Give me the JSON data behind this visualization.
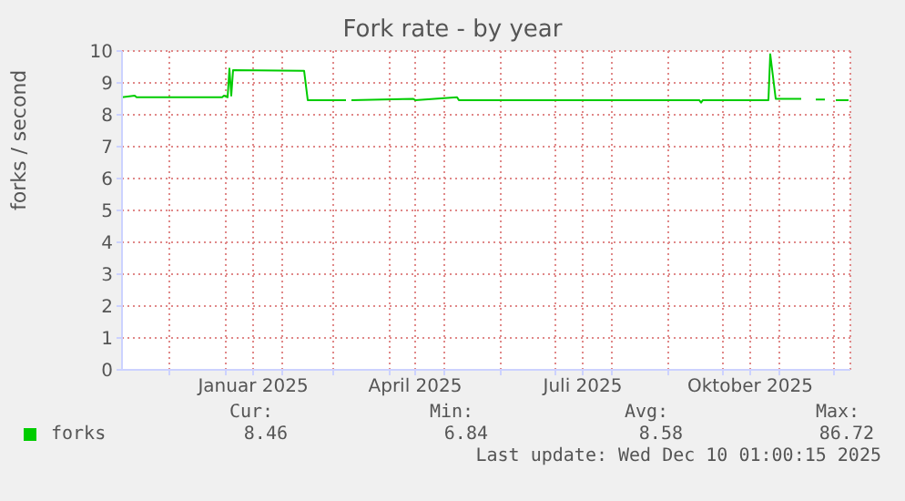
{
  "chart_data": {
    "type": "line",
    "title": "Fork rate - by year",
    "ylabel": "forks / second",
    "xlim": [
      "2024-11-05",
      "2025-12-10"
    ],
    "ylim": [
      0,
      10
    ],
    "yticks": [
      0,
      1,
      2,
      3,
      4,
      5,
      6,
      7,
      8,
      9,
      10
    ],
    "xticks": [
      {
        "value": "2024-12-01",
        "label": null
      },
      {
        "value": "2025-01-01",
        "label": null
      },
      {
        "value": "2025-01-16",
        "label": "Januar 2025"
      },
      {
        "value": "2025-02-01",
        "label": null
      },
      {
        "value": "2025-03-01",
        "label": null
      },
      {
        "value": "2025-04-01",
        "label": null
      },
      {
        "value": "2025-04-15",
        "label": "April 2025"
      },
      {
        "value": "2025-05-01",
        "label": null
      },
      {
        "value": "2025-06-01",
        "label": null
      },
      {
        "value": "2025-07-01",
        "label": null
      },
      {
        "value": "2025-07-16",
        "label": "Juli 2025"
      },
      {
        "value": "2025-08-01",
        "label": null
      },
      {
        "value": "2025-09-01",
        "label": null
      },
      {
        "value": "2025-10-01",
        "label": null
      },
      {
        "value": "2025-10-16",
        "label": "Oktober 2025"
      },
      {
        "value": "2025-11-01",
        "label": null
      },
      {
        "value": "2025-12-01",
        "label": null
      }
    ],
    "series": [
      {
        "name": "forks",
        "color": "#00cc00",
        "x": [
          "2024-11-05",
          "2024-11-12",
          "2024-11-13",
          "2024-12-30",
          "2024-12-31",
          "2025-01-02",
          "2025-01-03",
          "2025-01-04",
          "2025-01-05",
          "2025-02-13",
          "2025-02-15",
          "2025-03-08",
          "2025-03-09",
          "2025-03-11",
          "2025-04-14",
          "2025-04-15",
          "2025-05-08",
          "2025-05-09",
          "2025-09-18",
          "2025-09-19",
          "2025-09-20",
          "2025-10-26",
          "2025-10-27",
          "2025-10-30",
          "2025-11-13",
          "2025-11-17",
          "2025-11-21",
          "2025-11-26",
          "2025-11-29",
          "2025-12-02",
          "2025-12-09"
        ],
        "values": [
          8.55,
          8.6,
          8.55,
          8.55,
          8.6,
          8.55,
          9.45,
          8.6,
          9.4,
          9.38,
          8.46,
          8.46,
          null,
          8.46,
          8.5,
          8.46,
          8.55,
          8.46,
          8.46,
          8.38,
          8.46,
          8.46,
          9.9,
          8.5,
          8.5,
          null,
          8.48,
          8.48,
          null,
          8.46,
          8.46
        ]
      }
    ],
    "grid": true,
    "legend": "bottom left",
    "annotations": [
      "Cur:",
      "Min:",
      "Avg:",
      "Max:",
      "8.46",
      "6.84",
      "8.58",
      "86.72",
      "Last update: Wed Dec 10 01:00:15 2025"
    ]
  }
}
